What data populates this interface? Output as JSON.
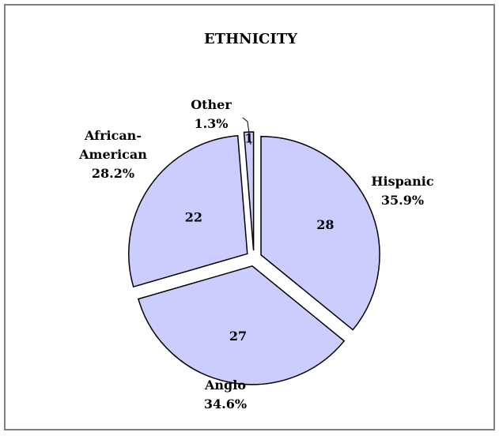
{
  "chart_data": {
    "type": "pie",
    "title": "ETHNICITY",
    "slices": [
      {
        "category": "Hispanic",
        "value": 28,
        "percent": "35.9%"
      },
      {
        "category": "Anglo",
        "value": 27,
        "percent": "34.6%"
      },
      {
        "category": "African-American",
        "category_lines": [
          "African-",
          "American"
        ],
        "value": 22,
        "percent": "28.2%"
      },
      {
        "category": "Other",
        "value": 1,
        "percent": "1.3%"
      }
    ],
    "slice_color": "#ccccff",
    "outline_color": "#000000",
    "exploded": true,
    "legend": "none"
  }
}
